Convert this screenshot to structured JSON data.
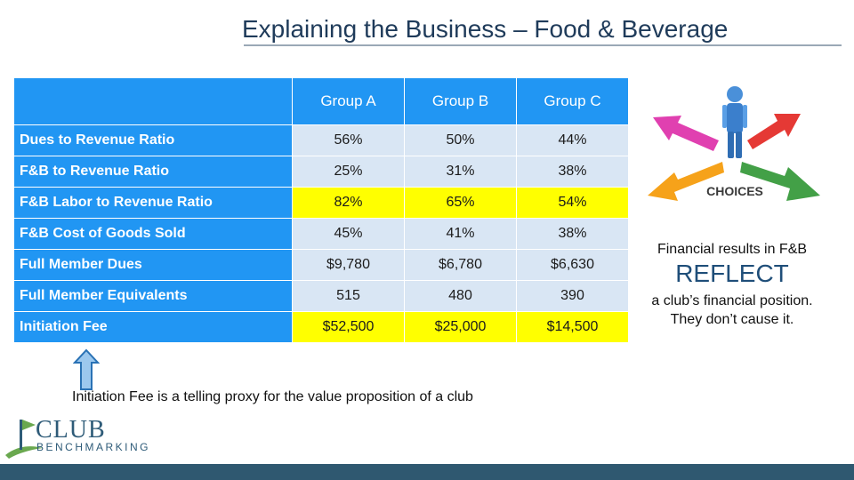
{
  "slide": {
    "title": "Explaining the Business – Food & Beverage"
  },
  "table": {
    "columns": [
      "",
      "Group A",
      "Group B",
      "Group C"
    ],
    "rows": [
      {
        "label": "Dues to Revenue Ratio",
        "values": [
          "56%",
          "50%",
          "44%"
        ],
        "highlight": false
      },
      {
        "label": "F&B to Revenue Ratio",
        "values": [
          "25%",
          "31%",
          "38%"
        ],
        "highlight": false
      },
      {
        "label": "F&B Labor to Revenue Ratio",
        "values": [
          "82%",
          "65%",
          "54%"
        ],
        "highlight": true
      },
      {
        "label": "F&B Cost of Goods Sold",
        "values": [
          "45%",
          "41%",
          "38%"
        ],
        "highlight": false
      },
      {
        "label": "Full Member Dues",
        "values": [
          "$9,780",
          "$6,780",
          "$6,630"
        ],
        "highlight": false
      },
      {
        "label": "Full Member Equivalents",
        "values": [
          "515",
          "480",
          "390"
        ],
        "highlight": false
      },
      {
        "label": "Initiation Fee",
        "values": [
          "$52,500",
          "$25,000",
          "$14,500"
        ],
        "highlight": true
      }
    ]
  },
  "caption": "Initiation Fee is a telling proxy for the value proposition of a club",
  "choices": {
    "label": "CHOICES",
    "arrow_colors": [
      "#e040b0",
      "#e53935",
      "#f6a21a",
      "#43a047"
    ],
    "figure_color": "#4a90d9"
  },
  "callout": {
    "line1": "Financial results in F&B",
    "emphasis": "REFLECT",
    "line2": "a club’s financial position.",
    "line3": "They don’t cause it."
  },
  "logo": {
    "name": "CLUB",
    "subname": "BENCHMARKING"
  },
  "colors": {
    "header_blue": "#2196f3",
    "cell_light": "#d9e6f4",
    "highlight_yellow": "#ffff00",
    "title_color": "#1f3b5a",
    "footer_bar": "#2f5870"
  }
}
